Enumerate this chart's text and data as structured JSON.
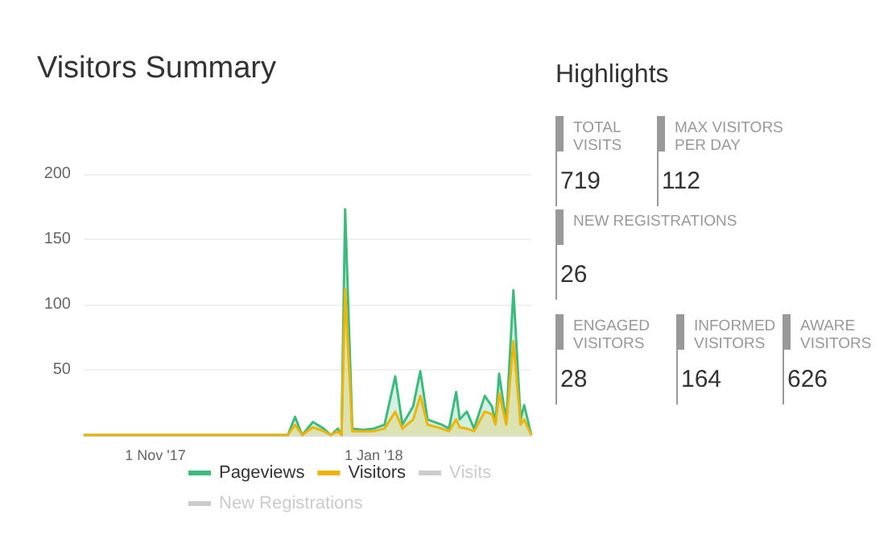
{
  "chart_data": [
    {
      "type": "area",
      "title": "Visitors Summary",
      "x": [
        "2017-10-12",
        "2017-12-08",
        "2017-12-10",
        "2017-12-12",
        "2017-12-15",
        "2017-12-18",
        "2017-12-20",
        "2017-12-22",
        "2017-12-23",
        "2017-12-24",
        "2017-12-26",
        "2017-12-29",
        "2018-01-01",
        "2018-01-04",
        "2018-01-07",
        "2018-01-09",
        "2018-01-12",
        "2018-01-14",
        "2018-01-16",
        "2018-01-20",
        "2018-01-22",
        "2018-01-24",
        "2018-01-25",
        "2018-01-27",
        "2018-01-29",
        "2018-02-01",
        "2018-02-03",
        "2018-02-04",
        "2018-02-05",
        "2018-02-07",
        "2018-02-09",
        "2018-02-11",
        "2018-02-12",
        "2018-02-14"
      ],
      "series": [
        {
          "name": "Pageviews",
          "color": "#3dbb7e",
          "values": [
            0,
            0,
            14,
            0,
            10,
            5,
            0,
            5,
            0,
            173,
            5,
            4,
            5,
            8,
            45,
            8,
            22,
            49,
            12,
            8,
            5,
            33,
            12,
            18,
            5,
            30,
            22,
            10,
            47,
            10,
            111,
            12,
            23,
            0
          ]
        },
        {
          "name": "Visitors",
          "color": "#f0b400",
          "values": [
            0,
            0,
            8,
            0,
            6,
            3,
            0,
            3,
            0,
            112,
            3,
            3,
            3,
            5,
            18,
            5,
            12,
            30,
            8,
            5,
            3,
            12,
            6,
            5,
            3,
            18,
            16,
            8,
            32,
            8,
            72,
            8,
            12,
            0
          ]
        },
        {
          "name": "Visits",
          "values": [
            null,
            null,
            null,
            null,
            null,
            null,
            null,
            null,
            null,
            null,
            null,
            null,
            null,
            null,
            null,
            null,
            null,
            null,
            null,
            null,
            null,
            null,
            null,
            null,
            null,
            null,
            null,
            null,
            null,
            null,
            null,
            null,
            null,
            null
          ]
        },
        {
          "name": "New Registrations",
          "values": [
            null,
            null,
            null,
            null,
            null,
            null,
            null,
            null,
            null,
            null,
            null,
            null,
            null,
            null,
            null,
            null,
            null,
            null,
            null,
            null,
            null,
            null,
            null,
            null,
            null,
            null,
            null,
            null,
            null,
            null,
            null,
            null,
            null,
            null
          ]
        }
      ],
      "xlim": [
        "2017-10-12",
        "2018-02-14"
      ],
      "xticks": [
        {
          "value": "2017-11-01",
          "label": "1 Nov '17"
        },
        {
          "value": "2018-01-01",
          "label": "1 Jan '18"
        }
      ],
      "ylim": [
        0,
        200
      ],
      "yticks": [
        50,
        100,
        150,
        200
      ],
      "grid": "y",
      "legend": "bottom",
      "marker": "none"
    },
    {
      "type": "other",
      "title": "Highlights",
      "categories": [
        "TOTAL VISITS",
        "MAX VISITORS PER DAY",
        "NEW REGISTRATIONS",
        "ENGAGED VISITORS",
        "INFORMED VISITORS",
        "AWARE VISITORS"
      ],
      "values": [
        719,
        112,
        26,
        28,
        164,
        626
      ],
      "data_labels": true
    }
  ]
}
